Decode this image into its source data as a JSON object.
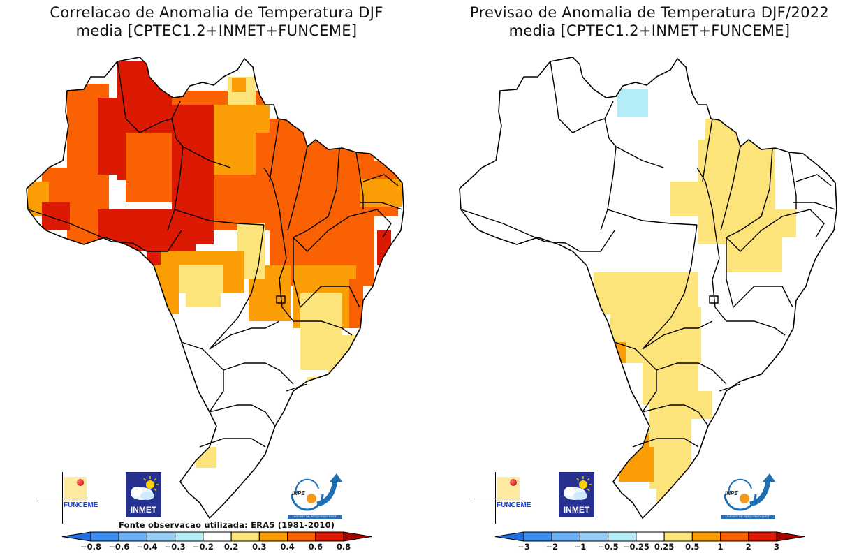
{
  "panels": [
    {
      "id": "left",
      "title_line1": "Correlacao de Anomalia de Temperatura DJF",
      "title_line2": "media [CPTEC1.2+INMET+FUNCEME]",
      "source_note": "Fonte observacao utilizada: ERA5 (1981-2010)",
      "colorbar": {
        "labels": [
          "-0.8",
          "-0.6",
          "-0.4",
          "-0.3",
          "-0.2",
          "0.2",
          "0.3",
          "0.4",
          "0.6",
          "0.8"
        ],
        "colors": [
          "#1f6fe0",
          "#3c8ef0",
          "#6aaef5",
          "#96cdf5",
          "#b4ecf7",
          "#ffffff",
          "#fde47a",
          "#fb9e06",
          "#fa6102",
          "#dc1a04",
          "#a50000"
        ]
      },
      "summary": "Positive correlation across most of Brazil: strongest (0.6-0.8) over Roraima, Amazonas, Para, Acre/Rondonia and eastern Maranhao/Alagoas coast; 0.4-0.6 widely in North and Northeast; 0.2-0.4 in Centre-West and Minas Gerais; near zero (white) in South and Southeast interior."
    },
    {
      "id": "right",
      "title_line1": "Previsao de Anomalia de Temperatura DJF/2022",
      "title_line2": "media [CPTEC1.2+INMET+FUNCEME]",
      "colorbar": {
        "labels": [
          "-3",
          "-2",
          "-1",
          "-0.5",
          "-0.25",
          "0.25",
          "0.5",
          "1",
          "2",
          "3"
        ],
        "colors": [
          "#1f6fe0",
          "#3c8ef0",
          "#6aaef5",
          "#96cdf5",
          "#b4ecf7",
          "#ffffff",
          "#fde47a",
          "#fb9e06",
          "#fa6102",
          "#dc1a04",
          "#a50000"
        ]
      },
      "summary": "Mostly near-normal (white). Warm anomaly 0.25-0.5 over Maranhao, Tocantins, Piaui, western Bahia, Mato Grosso do Sul, Parana, Santa Catarina and Rio Grande do Sul; 0.5-1 in western Rio Grande do Sul and western Mato Grosso do Sul border; -0.5 to -0.25 small patch in northern Roraima/Para."
    }
  ],
  "logos": {
    "funceme": "FUNCEME",
    "inmet": "INMET",
    "inpe": "INPE",
    "inpe_subtitle": "UNIDADE DE PESQUISA DO MCTI"
  }
}
